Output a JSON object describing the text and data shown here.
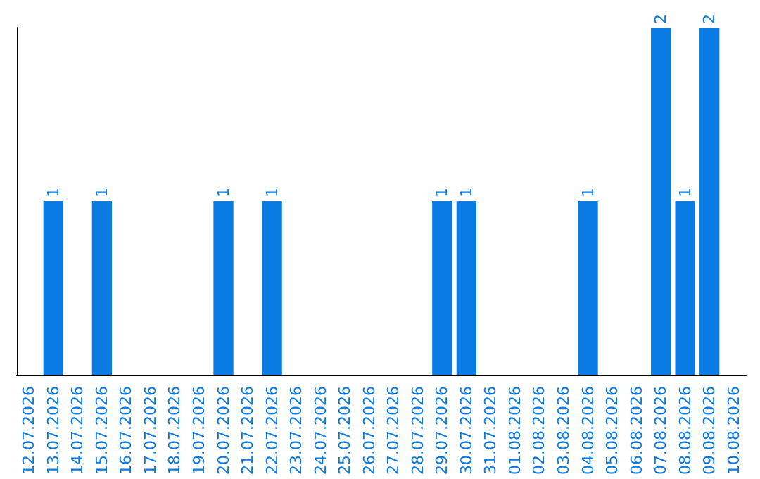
{
  "chart_data": {
    "type": "bar",
    "categories": [
      "12.07.2026",
      "13.07.2026",
      "14.07.2026",
      "15.07.2026",
      "16.07.2026",
      "17.07.2026",
      "18.07.2026",
      "19.07.2026",
      "20.07.2026",
      "21.07.2026",
      "22.07.2026",
      "23.07.2026",
      "24.07.2026",
      "25.07.2026",
      "26.07.2026",
      "27.07.2026",
      "28.07.2026",
      "29.07.2026",
      "30.07.2026",
      "31.07.2026",
      "01.08.2026",
      "02.08.2026",
      "03.08.2026",
      "04.08.2026",
      "05.08.2026",
      "06.08.2026",
      "07.08.2026",
      "08.08.2026",
      "09.08.2026",
      "10.08.2026"
    ],
    "values": [
      0,
      1,
      0,
      1,
      0,
      0,
      0,
      0,
      1,
      0,
      1,
      0,
      0,
      0,
      0,
      0,
      0,
      1,
      1,
      0,
      0,
      0,
      0,
      1,
      0,
      0,
      2,
      1,
      2,
      0
    ],
    "color": "#0a7be3",
    "value_labels": [
      null,
      "1",
      null,
      "1",
      null,
      null,
      null,
      null,
      "1",
      null,
      "1",
      null,
      null,
      null,
      null,
      null,
      null,
      "1",
      "1",
      null,
      null,
      null,
      null,
      "1",
      null,
      null,
      "2",
      "1",
      "2",
      null
    ],
    "tick_labels": "x",
    "grid": false
  }
}
